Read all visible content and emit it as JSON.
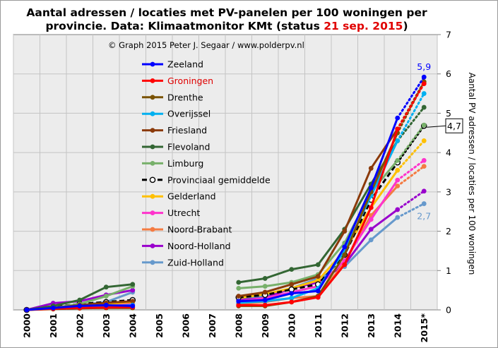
{
  "title": {
    "line1": "Aantal adressen / locaties met PV-panelen per 100 woningen per",
    "line2_prefix": "provincie.  Data: Klimaatmonitor KMt (status ",
    "line2_date": "21 sep. 2015",
    "line2_suffix": ")"
  },
  "credit": "© Graph  2015  Peter J. Segaar / www.polderpv.nl",
  "colors": {
    "plot_bg": "#ececec",
    "grid": "#c4c4c4",
    "title_highlight": "#e00000"
  },
  "chart_data": {
    "type": "line",
    "x": [
      "2000",
      "2001",
      "2002",
      "2003",
      "2004",
      "2005",
      "2006",
      "2007",
      "2008",
      "2009",
      "2010",
      "2011",
      "2012",
      "2013",
      "2014",
      "2015*"
    ],
    "ylim": [
      0,
      7
    ],
    "yticks": [
      0,
      1,
      2,
      3,
      4,
      5,
      6,
      7
    ],
    "ylabel": "Aantal PV adressen / locaties per 100 woningen",
    "xlabel": "",
    "grid": true,
    "legend_position": "top-left",
    "projection_note": "2015* shown as dotted extension",
    "annotations": [
      {
        "text": "5,9",
        "series": "Zeeland",
        "x": "2015*",
        "color": "#0000ff"
      },
      {
        "text": "2,7",
        "series": "Zuid-Holland",
        "x": "2015*",
        "color": "#6699cc"
      },
      {
        "text": "4,7",
        "series": "Provinciaal gemiddelde",
        "x": "2015*",
        "boxed": true,
        "color": "#000000"
      }
    ],
    "series": [
      {
        "name": "Zeeland",
        "color": "#0000ff",
        "label_color": "#000000",
        "dashed": false,
        "values": [
          0.0,
          0.05,
          0.1,
          0.12,
          0.1,
          null,
          null,
          null,
          0.22,
          0.25,
          0.42,
          0.48,
          1.6,
          3.1,
          4.88,
          5.92
        ]
      },
      {
        "name": "Groningen",
        "color": "#ff0000",
        "label_color": "#e00000",
        "dashed": false,
        "values": [
          0.0,
          0.03,
          0.05,
          0.06,
          0.07,
          null,
          null,
          null,
          0.12,
          0.12,
          0.2,
          0.32,
          1.15,
          2.6,
          4.6,
          5.75
        ]
      },
      {
        "name": "Drenthe",
        "color": "#7a5200",
        "label_color": "#000000",
        "dashed": false,
        "values": [
          0.0,
          0.02,
          0.04,
          0.05,
          0.05,
          null,
          null,
          null,
          0.1,
          0.1,
          0.2,
          0.35,
          1.4,
          3.0,
          4.5,
          5.8
        ]
      },
      {
        "name": "Overijssel",
        "color": "#00b0f0",
        "label_color": "#000000",
        "dashed": false,
        "values": [
          0.0,
          0.03,
          0.08,
          0.1,
          0.12,
          null,
          null,
          null,
          0.18,
          0.22,
          0.3,
          0.55,
          1.5,
          2.9,
          4.3,
          5.5
        ]
      },
      {
        "name": "Friesland",
        "color": "#8b3a0a",
        "label_color": "#000000",
        "dashed": false,
        "values": [
          0.0,
          0.05,
          0.12,
          0.18,
          0.22,
          null,
          null,
          null,
          0.35,
          0.45,
          0.65,
          0.85,
          2.0,
          3.6,
          4.6,
          5.8
        ]
      },
      {
        "name": "Flevoland",
        "color": "#336633",
        "label_color": "#000000",
        "dashed": false,
        "values": [
          0.0,
          0.1,
          0.25,
          0.58,
          0.65,
          null,
          null,
          null,
          0.7,
          0.8,
          1.03,
          1.15,
          2.05,
          3.2,
          4.3,
          5.15
        ]
      },
      {
        "name": "Limburg",
        "color": "#77b06a",
        "label_color": "#000000",
        "dashed": false,
        "values": [
          0.0,
          0.05,
          0.15,
          0.35,
          0.6,
          null,
          null,
          null,
          0.55,
          0.6,
          0.7,
          0.9,
          1.7,
          3.0,
          3.8,
          4.7
        ]
      },
      {
        "name": "Provinciaal gemiddelde",
        "color": "#000000",
        "label_color": "#000000",
        "dashed": true,
        "values": [
          0.0,
          0.07,
          0.15,
          0.2,
          0.25,
          null,
          null,
          null,
          0.32,
          0.38,
          0.52,
          0.65,
          1.4,
          2.8,
          3.75,
          4.68
        ]
      },
      {
        "name": "Gelderland",
        "color": "#ffc000",
        "label_color": "#000000",
        "dashed": false,
        "values": [
          0.0,
          0.06,
          0.12,
          0.15,
          0.2,
          null,
          null,
          null,
          0.3,
          0.4,
          0.55,
          0.75,
          1.5,
          2.6,
          3.55,
          4.3
        ]
      },
      {
        "name": "Utrecht",
        "color": "#ff33cc",
        "label_color": "#000000",
        "dashed": false,
        "values": [
          0.0,
          0.04,
          0.1,
          0.12,
          0.15,
          null,
          null,
          null,
          0.22,
          0.3,
          0.45,
          0.6,
          1.25,
          2.3,
          3.3,
          3.8
        ]
      },
      {
        "name": "Noord-Brabant",
        "color": "#f47b42",
        "label_color": "#000000",
        "dashed": false,
        "values": [
          0.0,
          0.03,
          0.08,
          0.1,
          0.12,
          null,
          null,
          null,
          0.15,
          0.2,
          0.3,
          0.35,
          1.2,
          2.4,
          3.15,
          3.65
        ]
      },
      {
        "name": "Noord-Holland",
        "color": "#9900cc",
        "label_color": "#000000",
        "dashed": false,
        "values": [
          0.0,
          0.17,
          0.22,
          0.38,
          0.5,
          null,
          null,
          null,
          0.25,
          0.3,
          0.55,
          0.7,
          1.15,
          2.05,
          2.55,
          3.02
        ]
      },
      {
        "name": "Zuid-Holland",
        "color": "#6699cc",
        "label_color": "#000000",
        "dashed": false,
        "values": [
          0.0,
          0.05,
          0.12,
          0.2,
          0.45,
          null,
          null,
          null,
          0.25,
          0.35,
          0.55,
          0.8,
          1.1,
          1.78,
          2.35,
          2.7
        ]
      }
    ]
  }
}
